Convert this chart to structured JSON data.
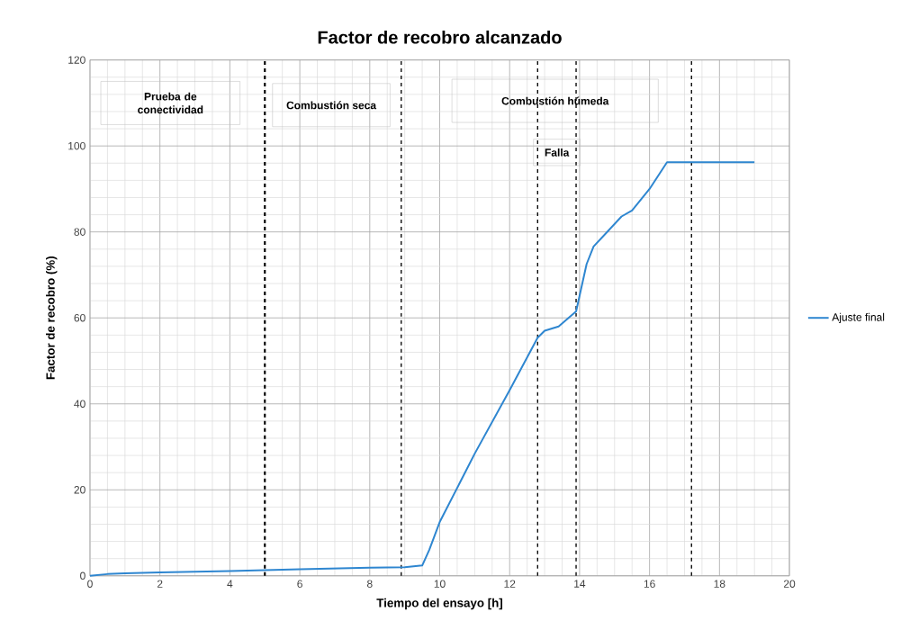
{
  "chart_data": {
    "type": "line",
    "title": "Factor de recobro alcanzado",
    "xlabel": "Tiempo del ensayo [h]",
    "ylabel": "Factor de recobro (%)",
    "x": [
      0,
      0.5,
      1,
      2,
      4,
      5,
      6,
      8,
      9,
      9.5,
      9.7,
      10,
      11,
      12,
      12.8,
      13,
      13.4,
      13.9,
      14.2,
      14.4,
      14.8,
      15.2,
      15.5,
      16,
      16.5,
      19
    ],
    "series": [
      {
        "name": "Ajuste final",
        "color": "#2e86d0",
        "values": [
          0,
          0.4,
          0.6,
          0.8,
          1.1,
          1.3,
          1.5,
          1.9,
          2.0,
          2.4,
          6,
          12.5,
          28.4,
          43.2,
          55.4,
          57,
          58,
          61.5,
          72.5,
          76.6,
          80.1,
          83.6,
          85,
          90,
          96.2,
          96.2
        ]
      }
    ],
    "xlim": [
      0,
      20
    ],
    "ylim": [
      0,
      120
    ],
    "xticks": [
      0,
      2,
      4,
      6,
      8,
      10,
      12,
      14,
      16,
      18,
      20
    ],
    "yticks": [
      0,
      20,
      40,
      60,
      80,
      100,
      120
    ],
    "grid": true,
    "legend": "right",
    "line_style": "solid",
    "marker": "none",
    "ref_lines": [
      {
        "axis": "x",
        "value": 5.0,
        "color": "#000000",
        "line_style": "dashed"
      },
      {
        "axis": "x",
        "value": 8.9,
        "color": "#000000",
        "line_style": "dashed"
      },
      {
        "axis": "x",
        "value": 12.8,
        "color": "#000000",
        "line_style": "dashed"
      },
      {
        "axis": "x",
        "value": 13.9,
        "color": "#000000",
        "line_style": "dashed"
      },
      {
        "axis": "x",
        "value": 17.2,
        "color": "#000000",
        "line_style": "dashed"
      }
    ],
    "annotations": [
      "Prueba de conectividad",
      "Combustión seca",
      "Combustión húmeda",
      "Falla"
    ]
  }
}
